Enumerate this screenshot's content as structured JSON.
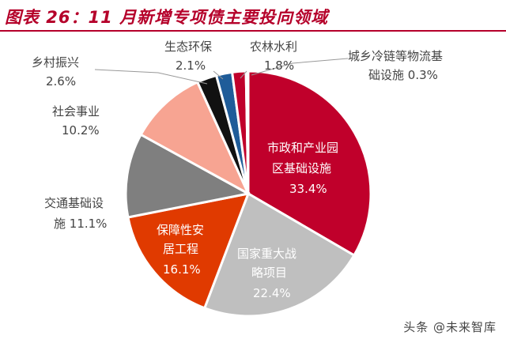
{
  "chart_data": {
    "type": "pie",
    "title": "图表 26：11 月新增专项债主要投向领域",
    "slices": [
      {
        "name": "市政和产业园区基础设施",
        "value": 33.4,
        "label": "33.4%",
        "color": "#c0002b"
      },
      {
        "name": "国家重大战略项目",
        "value": 22.4,
        "label": "22.4%",
        "color": "#bfbfbf"
      },
      {
        "name": "保障性安居工程",
        "value": 16.1,
        "label": "16.1%",
        "color": "#e03a00"
      },
      {
        "name": "交通基础设施",
        "value": 11.1,
        "label": "11.1%",
        "color": "#7f7f7f"
      },
      {
        "name": "社会事业",
        "value": 10.2,
        "label": "10.2%",
        "color": "#f7a492"
      },
      {
        "name": "乡村振兴",
        "value": 2.6,
        "label": "2.6%",
        "color": "#111111"
      },
      {
        "name": "生态环保",
        "value": 2.1,
        "label": "2.1%",
        "color": "#1f5c99"
      },
      {
        "name": "农林水利",
        "value": 1.8,
        "label": "1.8%",
        "color": "#c0002b"
      },
      {
        "name": "城乡冷链等物流基础设施",
        "value": 0.3,
        "label": "0.3%",
        "color": "#c0002b"
      }
    ]
  },
  "watermark": "头条 @未来智库"
}
